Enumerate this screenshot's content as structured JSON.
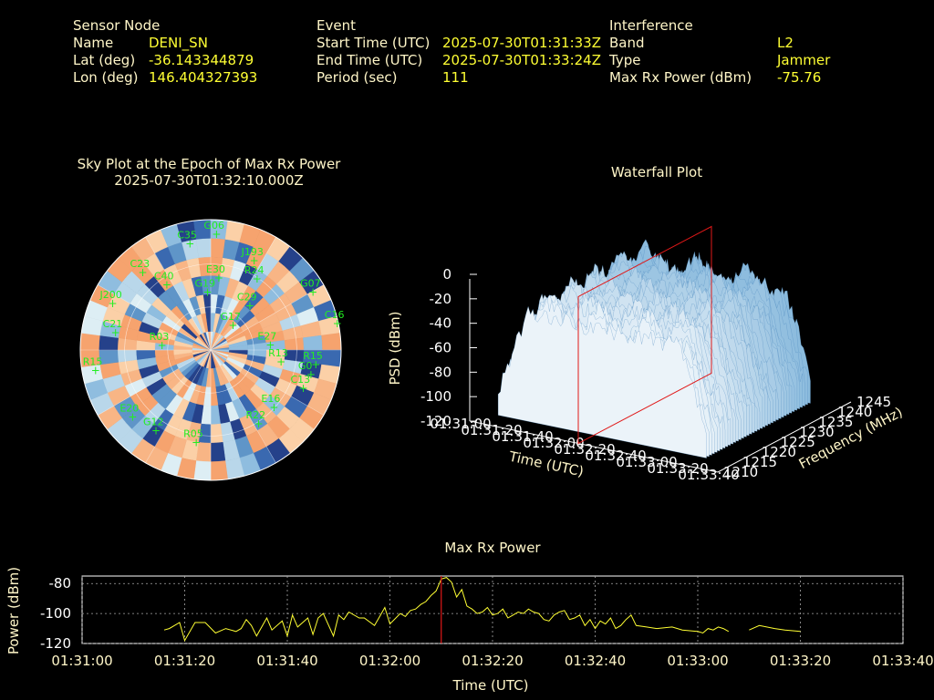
{
  "sensor": {
    "heading": "Sensor Node",
    "name_label": "Name",
    "name": "DENI_SN",
    "lat_label": "Lat (deg)",
    "lat": "-36.143344879",
    "lon_label": "Lon (deg)",
    "lon": "146.404327393"
  },
  "event": {
    "heading": "Event",
    "start_label": "Start Time (UTC)",
    "start": "2025-07-30T01:31:33Z",
    "end_label": "End Time (UTC)",
    "end": "2025-07-30T01:33:24Z",
    "period_label": "Period (sec)",
    "period": "111"
  },
  "interference": {
    "heading": "Interference",
    "band_label": "Band",
    "band": "L2",
    "type_label": "Type",
    "type": "Jammer",
    "power_label": "Max Rx Power (dBm)",
    "power": "-75.76"
  },
  "skyplot": {
    "title_line1": "Sky Plot at the Epoch of Max Rx Power",
    "title_line2": "2025-07-30T01:32:10.000Z",
    "satellites": [
      {
        "id": "G06",
        "az": 2,
        "el": 10
      },
      {
        "id": "C35",
        "az": 348,
        "el": 15
      },
      {
        "id": "J193",
        "az": 25,
        "el": 22
      },
      {
        "id": "R24",
        "az": 32,
        "el": 32
      },
      {
        "id": "G07",
        "az": 60,
        "el": 10
      },
      {
        "id": "C16",
        "az": 78,
        "el": 2
      },
      {
        "id": "R15",
        "az": 98,
        "el": 18
      },
      {
        "id": "G0",
        "az": 104,
        "el": 20
      },
      {
        "id": "C13",
        "az": 113,
        "el": 22
      },
      {
        "id": "E16",
        "az": 133,
        "el": 32
      },
      {
        "id": "R22",
        "az": 148,
        "el": 30
      },
      {
        "id": "R05",
        "az": 190,
        "el": 25
      },
      {
        "id": "G12",
        "az": 215,
        "el": 22
      },
      {
        "id": "E20",
        "az": 230,
        "el": 18
      },
      {
        "id": "R15",
        "az": 260,
        "el": 8
      },
      {
        "id": "C21",
        "az": 280,
        "el": 22
      },
      {
        "id": "J200",
        "az": 295,
        "el": 14
      },
      {
        "id": "C40",
        "az": 325,
        "el": 35
      },
      {
        "id": "C23",
        "az": 318,
        "el": 18
      },
      {
        "id": "R13",
        "az": 100,
        "el": 42
      },
      {
        "id": "E27",
        "az": 85,
        "el": 50
      },
      {
        "id": "G17",
        "az": 40,
        "el": 68
      },
      {
        "id": "C29",
        "az": 40,
        "el": 50
      },
      {
        "id": "G19",
        "az": 355,
        "el": 50
      },
      {
        "id": "E30",
        "az": 5,
        "el": 40
      },
      {
        "id": "R03",
        "az": 275,
        "el": 55
      }
    ]
  },
  "waterfall": {
    "title": "Waterfall Plot",
    "zlabel": "PSD (dBm)",
    "xlabel": "Time (UTC)",
    "ylabel": "Frequency (MHz)"
  },
  "maxpower": {
    "title": "Max Rx Power",
    "xlabel": "Time (UTC)",
    "ylabel": "Power (dBm)"
  },
  "chart_data": [
    {
      "type": "scatter",
      "name": "sky-plot",
      "title": "Sky Plot at the Epoch of Max Rx Power",
      "subtitle": "2025-07-30T01:32:10.000Z"
    },
    {
      "type": "area",
      "name": "waterfall",
      "title": "Waterfall Plot",
      "zlabel": "PSD (dBm)",
      "xlabel": "Time (UTC)",
      "ylabel": "Frequency (MHz)",
      "z_ticks": [
        "0",
        "-20",
        "-40",
        "-60",
        "-80",
        "-100",
        "-120"
      ],
      "zlim": [
        -120,
        0
      ],
      "x_ticks": [
        "01:31:00",
        "01:31:20",
        "01:31:40",
        "01:32:00",
        "01:32:20",
        "01:32:40",
        "01:33:00",
        "01:33:20",
        "01:33:40"
      ],
      "y_ticks": [
        "1210",
        "1215",
        "1220",
        "1225",
        "1230",
        "1235",
        "1240",
        "1245"
      ],
      "ylim": [
        1210,
        1245
      ],
      "marker_time": "01:32:10"
    },
    {
      "type": "line",
      "name": "max-rx-power",
      "title": "Max Rx Power",
      "xlabel": "Time (UTC)",
      "ylabel": "Power (dBm)",
      "x_ticks": [
        "01:31:00",
        "01:31:20",
        "01:31:40",
        "01:32:00",
        "01:32:20",
        "01:32:40",
        "01:33:00",
        "01:33:20",
        "01:33:40"
      ],
      "xlim_sec": [
        0,
        160
      ],
      "y_ticks": [
        "-80",
        "-100",
        "-120"
      ],
      "ylim": [
        -120,
        -75
      ],
      "marker_sec": 70,
      "x": [
        16,
        17,
        19,
        20,
        22,
        24,
        26,
        28,
        30,
        31,
        32,
        33,
        34,
        36,
        37,
        39,
        40,
        41,
        42,
        44,
        45,
        46,
        47,
        49,
        50,
        51,
        52,
        54,
        55,
        57,
        58,
        59,
        60,
        62,
        63,
        64,
        65,
        66,
        67,
        68,
        69,
        70,
        71,
        72,
        73,
        74,
        75,
        76,
        77,
        78,
        79,
        80,
        81,
        82,
        83,
        84,
        85,
        86,
        87,
        88,
        89,
        90,
        91,
        92,
        93,
        94,
        95,
        96,
        97,
        98,
        99,
        100,
        101,
        102,
        103,
        104,
        105,
        106,
        107,
        108,
        110,
        112,
        115,
        117,
        120,
        121,
        122,
        123,
        124,
        125,
        126,
        130,
        132,
        135,
        137,
        140
      ],
      "y": [
        -111,
        -110,
        -106,
        -118,
        -106,
        -106,
        -113,
        -110,
        -112,
        -110,
        -104,
        -108,
        -115,
        -103,
        -111,
        -105,
        -115,
        -101,
        -109,
        -103,
        -114,
        -103,
        -100,
        -115,
        -101,
        -104,
        -99,
        -103,
        -103,
        -108,
        -102,
        -96,
        -107,
        -100,
        -102,
        -98,
        -97,
        -94,
        -92,
        -88,
        -85,
        -77,
        -76,
        -79,
        -89,
        -84,
        -95,
        -97,
        -100,
        -99,
        -96,
        -101,
        -100,
        -97,
        -103,
        -101,
        -99,
        -100,
        -97,
        -99,
        -100,
        -104,
        -105,
        -101,
        -99,
        -98,
        -104,
        -103,
        -101,
        -108,
        -104,
        -110,
        -105,
        -107,
        -103,
        -110,
        -108,
        -104,
        -101,
        -108,
        -109,
        -110,
        -109,
        -111,
        -112,
        -113,
        -110,
        -111,
        -109,
        -110,
        -112,
        -111,
        -108,
        -110,
        -111,
        -112
      ]
    }
  ]
}
